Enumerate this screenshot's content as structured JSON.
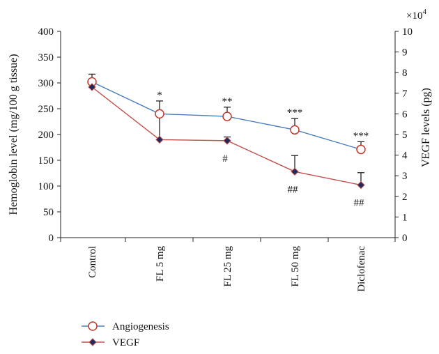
{
  "chart_data": {
    "type": "line",
    "categories": [
      "Control",
      "FL 5 mg",
      "FL 25 mg",
      "FL 50 mg",
      "Diclofenac"
    ],
    "ylabel": "Hemoglobin level (mg/100 g tissue)",
    "y2label": "VEGF levels (pg)",
    "y2_multiplier": "×10",
    "y2_multiplier_exp": "4",
    "ylim": [
      0,
      400
    ],
    "yticks": [
      "0",
      "50",
      "100",
      "150",
      "200",
      "250",
      "300",
      "350",
      "400"
    ],
    "y2lim": [
      0,
      10
    ],
    "y2ticks": [
      "0",
      "1",
      "2",
      "3",
      "4",
      "5",
      "6",
      "7",
      "8",
      "9",
      "10"
    ],
    "legend_position": "bottom-left",
    "series": [
      {
        "name": "Angiogenesis",
        "axis": "left",
        "color": "#4a7ebb",
        "marker": "open-circle",
        "marker_color": "#c0392b",
        "values": [
          302,
          240,
          235,
          209,
          171
        ],
        "errors": [
          15,
          25,
          18,
          22,
          15
        ],
        "error_side": "up",
        "annotations": [
          "",
          "*",
          "**",
          "***",
          "***"
        ]
      },
      {
        "name": "VEGF",
        "axis": "right",
        "color": "#c0504d",
        "marker": "filled-diamond",
        "marker_color": "#1f2a5a",
        "values": [
          7.3,
          4.75,
          4.7,
          3.2,
          2.55
        ],
        "errors": [
          0,
          1.15,
          0.18,
          0.78,
          0.6
        ],
        "error_side": "up",
        "annotations": [
          "",
          "",
          "#",
          "##",
          "##"
        ]
      }
    ]
  }
}
